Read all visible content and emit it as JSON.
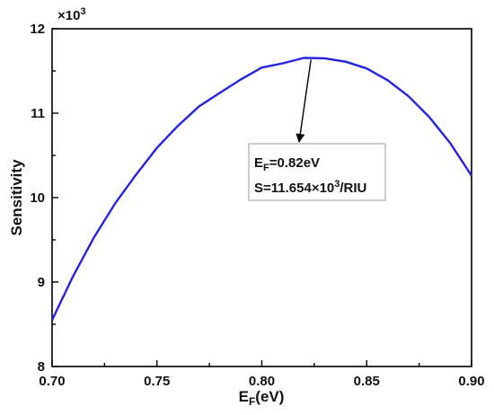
{
  "chart_data": {
    "type": "line",
    "xlabel": {
      "main": "E",
      "sub": "F",
      "rest": "(eV)"
    },
    "ylabel": "Sensitivity",
    "y_multiplier": {
      "base": "×10",
      "exp": "3"
    },
    "xlim": [
      0.7,
      0.9
    ],
    "ylim": [
      8,
      12
    ],
    "xticks": [
      "0.70",
      "0.75",
      "0.80",
      "0.85",
      "0.90"
    ],
    "yticks": [
      "8",
      "9",
      "10",
      "11",
      "12"
    ],
    "grid": false,
    "line_color": "#2323e0",
    "series": [
      {
        "x": [
          0.7,
          0.71,
          0.72,
          0.73,
          0.74,
          0.75,
          0.76,
          0.77,
          0.78,
          0.79,
          0.8,
          0.81,
          0.82,
          0.83,
          0.84,
          0.85,
          0.86,
          0.87,
          0.88,
          0.89,
          0.9
        ],
        "values": [
          8.55,
          9.07,
          9.53,
          9.93,
          10.27,
          10.59,
          10.85,
          11.08,
          11.24,
          11.4,
          11.54,
          11.59,
          11.654,
          11.65,
          11.61,
          11.53,
          11.39,
          11.2,
          10.95,
          10.64,
          10.26
        ]
      }
    ],
    "annotation": {
      "point": [
        0.82,
        11.654
      ],
      "line1": {
        "main": "E",
        "sub": "F",
        "rest": "=0.82eV"
      },
      "line2": {
        "pre": "S=11.654×10",
        "sup": "3",
        "post": "/RIU"
      }
    }
  }
}
